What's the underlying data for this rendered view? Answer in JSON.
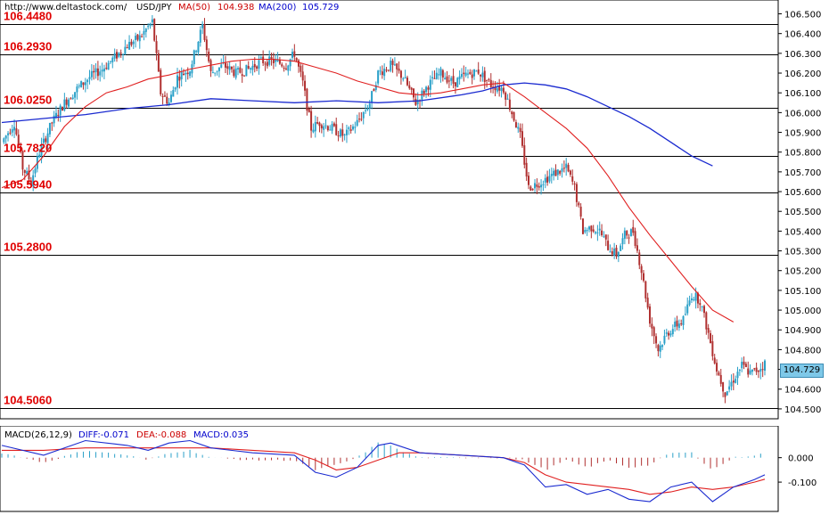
{
  "header": {
    "source": "http://www.deltastock.com/",
    "symbol": "USD/JPY",
    "ma50_label": "MA(50)",
    "ma50_value": "104.938",
    "ma200_label": "MA(200)",
    "ma200_value": "105.729"
  },
  "macd_header": {
    "name": "MACD(26,12,9)",
    "diff": "DIFF:-0.071",
    "dea": "DEA:-0.088",
    "macd": "MACD:0.035"
  },
  "current_price": "104.729",
  "colors": {
    "up": "#2aa0c8",
    "down": "#b03030",
    "ma50": "#e02020",
    "ma200": "#1a2ad0",
    "level_text": "#e00000"
  },
  "chart_data": [
    {
      "type": "candlestick",
      "title": "USD/JPY",
      "ylim": [
        104.45,
        106.57
      ],
      "yticks": [
        "106.500",
        "106.400",
        "106.300",
        "106.200",
        "106.100",
        "106.000",
        "105.900",
        "105.800",
        "105.700",
        "105.600",
        "105.500",
        "105.400",
        "105.300",
        "105.200",
        "105.100",
        "105.000",
        "104.900",
        "104.800",
        "104.700",
        "104.600",
        "104.500"
      ],
      "levels": [
        {
          "value": 106.448,
          "label": "106.4480"
        },
        {
          "value": 106.293,
          "label": "106.2930"
        },
        {
          "value": 106.025,
          "label": "106.0250"
        },
        {
          "value": 105.782,
          "label": "105.7820"
        },
        {
          "value": 105.594,
          "label": "105.5940"
        },
        {
          "value": 105.28,
          "label": "105.2800"
        },
        {
          "value": 104.506,
          "label": "104.5060"
        }
      ],
      "price_path": [
        [
          0,
          105.85
        ],
        [
          3,
          105.9
        ],
        [
          6,
          105.95
        ],
        [
          10,
          105.72
        ],
        [
          14,
          105.65
        ],
        [
          18,
          105.8
        ],
        [
          24,
          105.95
        ],
        [
          30,
          106.05
        ],
        [
          36,
          106.12
        ],
        [
          42,
          106.18
        ],
        [
          48,
          106.22
        ],
        [
          54,
          106.28
        ],
        [
          60,
          106.34
        ],
        [
          66,
          106.38
        ],
        [
          72,
          106.46
        ],
        [
          76,
          106.1
        ],
        [
          80,
          106.05
        ],
        [
          84,
          106.18
        ],
        [
          90,
          106.22
        ],
        [
          96,
          106.44
        ],
        [
          100,
          106.2
        ],
        [
          106,
          106.24
        ],
        [
          112,
          106.2
        ],
        [
          118,
          106.22
        ],
        [
          124,
          106.26
        ],
        [
          130,
          106.26
        ],
        [
          136,
          106.24
        ],
        [
          140,
          106.3
        ],
        [
          144,
          106.15
        ],
        [
          148,
          105.92
        ],
        [
          152,
          105.95
        ],
        [
          158,
          105.92
        ],
        [
          164,
          105.88
        ],
        [
          170,
          105.95
        ],
        [
          176,
          106.05
        ],
        [
          180,
          106.2
        ],
        [
          186,
          106.24
        ],
        [
          192,
          106.18
        ],
        [
          198,
          106.05
        ],
        [
          204,
          106.14
        ],
        [
          210,
          106.2
        ],
        [
          216,
          106.15
        ],
        [
          222,
          106.19
        ],
        [
          228,
          106.21
        ],
        [
          234,
          106.14
        ],
        [
          240,
          106.12
        ],
        [
          244,
          106.0
        ],
        [
          248,
          105.88
        ],
        [
          252,
          105.62
        ],
        [
          258,
          105.65
        ],
        [
          264,
          105.69
        ],
        [
          270,
          105.72
        ],
        [
          274,
          105.62
        ],
        [
          278,
          105.4
        ],
        [
          282,
          105.42
        ],
        [
          286,
          105.4
        ],
        [
          290,
          105.32
        ],
        [
          294,
          105.28
        ],
        [
          298,
          105.38
        ],
        [
          302,
          105.4
        ],
        [
          306,
          105.2
        ],
        [
          310,
          104.95
        ],
        [
          314,
          104.8
        ],
        [
          318,
          104.88
        ],
        [
          322,
          104.92
        ],
        [
          326,
          104.95
        ],
        [
          330,
          105.08
        ],
        [
          334,
          105.05
        ],
        [
          338,
          104.88
        ],
        [
          342,
          104.7
        ],
        [
          346,
          104.58
        ],
        [
          350,
          104.65
        ],
        [
          354,
          104.72
        ],
        [
          358,
          104.68
        ],
        [
          362,
          104.7
        ],
        [
          365,
          104.73
        ]
      ],
      "series": [
        {
          "name": "MA(50)",
          "values": [
            [
              0,
              105.62
            ],
            [
              10,
              105.66
            ],
            [
              20,
              105.78
            ],
            [
              30,
              105.93
            ],
            [
              40,
              106.03
            ],
            [
              50,
              106.1
            ],
            [
              60,
              106.13
            ],
            [
              70,
              106.17
            ],
            [
              80,
              106.19
            ],
            [
              90,
              106.22
            ],
            [
              100,
              106.24
            ],
            [
              110,
              106.26
            ],
            [
              120,
              106.27
            ],
            [
              130,
              106.27
            ],
            [
              140,
              106.26
            ],
            [
              150,
              106.23
            ],
            [
              160,
              106.2
            ],
            [
              170,
              106.16
            ],
            [
              180,
              106.13
            ],
            [
              190,
              106.1
            ],
            [
              200,
              106.09
            ],
            [
              210,
              106.1
            ],
            [
              220,
              106.12
            ],
            [
              230,
              106.14
            ],
            [
              240,
              106.15
            ],
            [
              250,
              106.08
            ],
            [
              260,
              106.0
            ],
            [
              270,
              105.92
            ],
            [
              280,
              105.82
            ],
            [
              290,
              105.68
            ],
            [
              300,
              105.52
            ],
            [
              310,
              105.38
            ],
            [
              320,
              105.25
            ],
            [
              330,
              105.12
            ],
            [
              340,
              105.0
            ],
            [
              350,
              104.94
            ]
          ]
        },
        {
          "name": "MA(200)",
          "values": [
            [
              0,
              105.95
            ],
            [
              20,
              105.97
            ],
            [
              40,
              105.99
            ],
            [
              60,
              106.02
            ],
            [
              80,
              106.04
            ],
            [
              100,
              106.07
            ],
            [
              120,
              106.06
            ],
            [
              140,
              106.05
            ],
            [
              160,
              106.06
            ],
            [
              180,
              106.05
            ],
            [
              200,
              106.06
            ],
            [
              220,
              106.09
            ],
            [
              230,
              106.11
            ],
            [
              240,
              106.14
            ],
            [
              250,
              106.15
            ],
            [
              260,
              106.14
            ],
            [
              270,
              106.12
            ],
            [
              280,
              106.08
            ],
            [
              290,
              106.03
            ],
            [
              300,
              105.98
            ],
            [
              310,
              105.92
            ],
            [
              320,
              105.85
            ],
            [
              330,
              105.78
            ],
            [
              340,
              105.73
            ]
          ]
        }
      ]
    },
    {
      "type": "macd",
      "title": "MACD(26,12,9)",
      "ylim": [
        -0.22,
        0.13
      ],
      "yticks": [
        "0.000",
        "-0.100"
      ],
      "series": [
        {
          "name": "DIFF",
          "values": [
            [
              0,
              0.05
            ],
            [
              20,
              0.01
            ],
            [
              40,
              0.07
            ],
            [
              60,
              0.05
            ],
            [
              70,
              0.03
            ],
            [
              80,
              0.06
            ],
            [
              90,
              0.07
            ],
            [
              100,
              0.04
            ],
            [
              120,
              0.02
            ],
            [
              140,
              0.01
            ],
            [
              150,
              -0.06
            ],
            [
              160,
              -0.08
            ],
            [
              170,
              -0.04
            ],
            [
              180,
              0.05
            ],
            [
              186,
              0.06
            ],
            [
              200,
              0.02
            ],
            [
              220,
              0.01
            ],
            [
              240,
              0.0
            ],
            [
              250,
              -0.03
            ],
            [
              260,
              -0.12
            ],
            [
              270,
              -0.11
            ],
            [
              280,
              -0.15
            ],
            [
              290,
              -0.13
            ],
            [
              300,
              -0.17
            ],
            [
              310,
              -0.18
            ],
            [
              320,
              -0.12
            ],
            [
              330,
              -0.1
            ],
            [
              340,
              -0.18
            ],
            [
              350,
              -0.12
            ],
            [
              360,
              -0.09
            ],
            [
              365,
              -0.07
            ]
          ]
        },
        {
          "name": "DEA",
          "values": [
            [
              0,
              0.03
            ],
            [
              20,
              0.03
            ],
            [
              40,
              0.04
            ],
            [
              60,
              0.04
            ],
            [
              80,
              0.04
            ],
            [
              100,
              0.04
            ],
            [
              120,
              0.03
            ],
            [
              140,
              0.02
            ],
            [
              150,
              -0.01
            ],
            [
              160,
              -0.05
            ],
            [
              170,
              -0.04
            ],
            [
              180,
              -0.01
            ],
            [
              190,
              0.02
            ],
            [
              200,
              0.02
            ],
            [
              220,
              0.01
            ],
            [
              240,
              0.0
            ],
            [
              250,
              -0.02
            ],
            [
              260,
              -0.07
            ],
            [
              270,
              -0.1
            ],
            [
              280,
              -0.11
            ],
            [
              290,
              -0.12
            ],
            [
              300,
              -0.13
            ],
            [
              310,
              -0.15
            ],
            [
              320,
              -0.14
            ],
            [
              330,
              -0.12
            ],
            [
              340,
              -0.13
            ],
            [
              350,
              -0.12
            ],
            [
              360,
              -0.1
            ],
            [
              365,
              -0.088
            ]
          ]
        }
      ]
    }
  ]
}
